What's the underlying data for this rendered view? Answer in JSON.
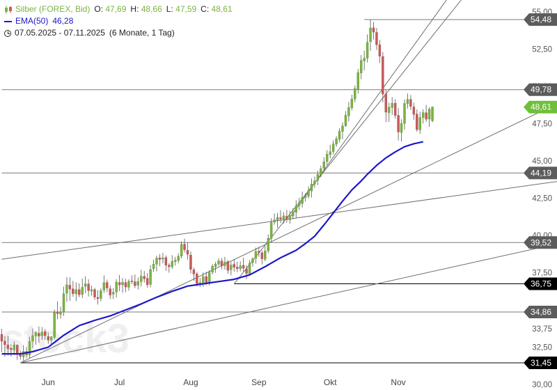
{
  "legend": {
    "instrument": "Silber (FOREX, Bid)",
    "open_label": "O:",
    "open": "47,69",
    "high_label": "H:",
    "high": "48,66",
    "low_label": "L:",
    "low": "47,59",
    "close_label": "C:",
    "close": "48,61",
    "ema_label": "EMA(50)",
    "ema_value": "46,28",
    "period": "07.05.2025 - 07.11.2025",
    "interval": "(6 Monate, 1 Tag)"
  },
  "colors": {
    "up": "#7bb342",
    "down": "#c75b5b",
    "ema": "#1c17c9",
    "line": "#707070",
    "text": "#333333",
    "current": "#6fbf3a",
    "watermark": "#eeeeee"
  },
  "watermark": "stock3",
  "chart_data": {
    "type": "candlestick",
    "ylim": [
      30,
      55
    ],
    "y_ticks": [
      30,
      32.5,
      33.75,
      35,
      37.5,
      40,
      42.5,
      45,
      47.5,
      50,
      52.5,
      55
    ],
    "y_tick_labels": [
      "30,00",
      "32,50",
      "33,75",
      "35,00",
      "37,50",
      "40,00",
      "42,50",
      "45,00",
      "47,50",
      "50,00",
      "52,50",
      "55,00"
    ],
    "x_labels": [
      "Jun",
      "Jul",
      "Aug",
      "Sep",
      "Okt",
      "Nov"
    ],
    "x_label_index": [
      15,
      38,
      61,
      83,
      106,
      128
    ],
    "price_levels": [
      {
        "value": 54.48,
        "label": "54,48",
        "style": "gray",
        "from_index": 117
      },
      {
        "value": 49.78,
        "label": "49,78",
        "style": "gray",
        "from_index": 0
      },
      {
        "value": 48.61,
        "label": "48,61",
        "style": "current",
        "from_index": 0
      },
      {
        "value": 44.19,
        "label": "44,19",
        "style": "gray",
        "from_index": 0
      },
      {
        "value": 39.52,
        "label": "39,52",
        "style": "gray",
        "from_index": 0
      },
      {
        "value": 36.75,
        "label": "36,75",
        "style": "black",
        "from_index": 75
      },
      {
        "value": 34.86,
        "label": "34,86",
        "style": "gray",
        "from_index": 0
      },
      {
        "value": 31.45,
        "label": "31,45",
        "style": "black",
        "from_index": 6
      }
    ],
    "trendlines": [
      {
        "from": [
          6,
          31.45
        ],
        "to": [
          146,
          37.9
        ]
      },
      {
        "from": [
          6,
          31.45
        ],
        "to": [
          146,
          45.5
        ]
      },
      {
        "from": [
          0,
          38.4
        ],
        "to": [
          146,
          42.65
        ]
      },
      {
        "from": [
          75,
          36.75
        ],
        "to": [
          146,
          55.2
        ]
      },
      {
        "from": [
          93,
          41.2
        ],
        "to": [
          146,
          56.5
        ]
      }
    ],
    "candles": [
      [
        33.36,
        33.73,
        32.16,
        32.9
      ],
      [
        32.91,
        33.23,
        31.85,
        32.66
      ],
      [
        32.66,
        33.25,
        31.95,
        32.41
      ],
      [
        32.43,
        32.73,
        31.88,
        32.34
      ],
      [
        32.32,
        32.89,
        32.09,
        32.66
      ],
      [
        32.64,
        32.68,
        31.65,
        32.09
      ],
      [
        32.1,
        32.26,
        31.66,
        31.88
      ],
      [
        31.85,
        32.64,
        31.6,
        32.22
      ],
      [
        32.21,
        32.51,
        31.76,
        31.98
      ],
      [
        31.98,
        33.2,
        31.77,
        32.88
      ],
      [
        32.9,
        33.76,
        32.44,
        33.28
      ],
      [
        33.25,
        33.56,
        32.66,
        33.48
      ],
      [
        33.44,
        33.89,
        32.79,
        33.24
      ],
      [
        33.27,
        33.85,
        32.99,
        33.52
      ],
      [
        33.55,
        33.73,
        32.99,
        33.27
      ],
      [
        33.22,
        33.47,
        32.72,
        32.97
      ],
      [
        32.97,
        33.24,
        32.64,
        33.2
      ],
      [
        33.16,
        35.03,
        33.02,
        34.82
      ],
      [
        34.85,
        35.58,
        34.37,
        34.75
      ],
      [
        34.71,
        35.22,
        34.42,
        34.85
      ],
      [
        34.85,
        36.56,
        34.59,
        36.08
      ],
      [
        36.12,
        37.21,
        35.55,
        36.69
      ],
      [
        36.66,
        37.19,
        35.62,
        36.4
      ],
      [
        36.41,
        36.95,
        35.88,
        36.09
      ],
      [
        36.08,
        36.85,
        35.59,
        36.36
      ],
      [
        36.36,
        36.78,
        35.85,
        36.02
      ],
      [
        36.04,
        37.11,
        35.79,
        36.52
      ],
      [
        36.58,
        37.26,
        36.12,
        36.75
      ],
      [
        36.74,
        37.05,
        35.9,
        36.29
      ],
      [
        36.26,
        36.62,
        35.96,
        36.36
      ],
      [
        36.37,
        36.48,
        35.67,
        35.86
      ],
      [
        35.84,
        36.33,
        35.36,
        35.76
      ],
      [
        35.77,
        36.45,
        35.57,
        36.29
      ],
      [
        36.33,
        37.32,
        36.14,
        36.83
      ],
      [
        36.84,
        37.03,
        36.2,
        36.47
      ],
      [
        36.42,
        36.64,
        35.73,
        36
      ],
      [
        36.06,
        36.47,
        35.73,
        36.18
      ],
      [
        36.2,
        37.06,
        35.82,
        36.87
      ],
      [
        36.84,
        37.35,
        36.27,
        36.68
      ],
      [
        36.68,
        37.13,
        36.15,
        36.86
      ],
      [
        36.83,
        37.09,
        36.19,
        36.54
      ],
      [
        36.52,
        37.05,
        36.29,
        36.92
      ],
      [
        36.94,
        37.32,
        36.73,
        36.9
      ],
      [
        36.89,
        37.38,
        36.46,
        36.63
      ],
      [
        36.66,
        37.18,
        36.37,
        36.9
      ],
      [
        36.89,
        37.69,
        36.57,
        37.26
      ],
      [
        37.25,
        37.61,
        36.83,
        37.09
      ],
      [
        37.12,
        37.46,
        36.49,
        36.69
      ],
      [
        36.71,
        38.01,
        36.52,
        37.71
      ],
      [
        37.77,
        38.37,
        37.55,
        38.07
      ],
      [
        38.07,
        38.64,
        37.58,
        38.47
      ],
      [
        38.5,
        38.75,
        37.93,
        38.39
      ],
      [
        38.41,
        38.83,
        38.12,
        38.49
      ],
      [
        38.51,
        38.66,
        37.62,
        38
      ],
      [
        38,
        38.14,
        37.5,
        37.9
      ],
      [
        37.89,
        38.67,
        37.75,
        38.26
      ],
      [
        38.24,
        38.56,
        37.97,
        38.34
      ],
      [
        38.31,
        38.8,
        38.12,
        38.6
      ],
      [
        38.61,
        39.6,
        38.45,
        39.4
      ],
      [
        39.41,
        39.78,
        38.85,
        39.04
      ],
      [
        39,
        39.49,
        38.37,
        38.73
      ],
      [
        38.68,
        38.92,
        37.45,
        37.72
      ],
      [
        37.69,
        37.84,
        36.95,
        37.41
      ],
      [
        37.42,
        37.56,
        36.58,
        36.77
      ],
      [
        36.79,
        37.15,
        36.53,
        36.83
      ],
      [
        36.84,
        37.52,
        36.56,
        37.24
      ],
      [
        37.24,
        37.56,
        36.67,
        36.86
      ],
      [
        36.82,
        37.67,
        36.64,
        37.5
      ],
      [
        37.53,
        38.08,
        37.39,
        37.93
      ],
      [
        37.9,
        38.22,
        37.49,
        38.07
      ],
      [
        38.07,
        38.46,
        37.96,
        38.29
      ],
      [
        38.28,
        38.48,
        37.73,
        37.97
      ],
      [
        37.97,
        38.56,
        37.71,
        38.2
      ],
      [
        38.25,
        38.32,
        37.43,
        37.66
      ],
      [
        37.69,
        38.21,
        37.32,
        38.01
      ],
      [
        38.06,
        38.41,
        37.56,
        37.86
      ],
      [
        37.87,
        38.23,
        37.54,
        37.77
      ],
      [
        37.76,
        38.26,
        37.57,
        37.96
      ],
      [
        37.99,
        38.51,
        37.57,
        37.8
      ],
      [
        37.76,
        38.01,
        37.06,
        37.45
      ],
      [
        37.41,
        38.34,
        37.3,
        38.12
      ],
      [
        38.17,
        38.53,
        37.9,
        38.43
      ],
      [
        38.46,
        39.18,
        38.1,
        38.93
      ],
      [
        38.93,
        39.24,
        38.56,
        38.85
      ],
      [
        38.83,
        38.98,
        38.05,
        38.43
      ],
      [
        38.4,
        39.29,
        38.26,
        38.95
      ],
      [
        38.96,
        40.07,
        38.8,
        39.81
      ],
      [
        39.81,
        41.15,
        39.55,
        40.86
      ],
      [
        40.89,
        41.48,
        40.71,
        41.04
      ],
      [
        41.03,
        41.51,
        40.5,
        41.2
      ],
      [
        41.19,
        41.68,
        40.83,
        41.1
      ],
      [
        41.1,
        41.57,
        40.79,
        41.31
      ],
      [
        41.28,
        41.71,
        40.86,
        41.08
      ],
      [
        41.05,
        41.66,
        40.79,
        41.32
      ],
      [
        41.3,
        41.84,
        41.09,
        41.54
      ],
      [
        41.55,
        42.36,
        41.19,
        41.98
      ],
      [
        42,
        42.52,
        41.71,
        42.17
      ],
      [
        42.14,
        42.94,
        41.86,
        42.56
      ],
      [
        42.54,
        42.82,
        42.27,
        42.64
      ],
      [
        42.64,
        43.28,
        42.47,
        43
      ],
      [
        42.98,
        43.82,
        42.54,
        43.44
      ],
      [
        43.44,
        43.95,
        43.19,
        43.66
      ],
      [
        43.69,
        44.34,
        43.37,
        44.09
      ],
      [
        44.05,
        44.68,
        43.9,
        44.48
      ],
      [
        44.5,
        45.25,
        44.32,
        44.94
      ],
      [
        44.96,
        45.72,
        44.72,
        45.45
      ],
      [
        45.42,
        46.08,
        45.17,
        45.62
      ],
      [
        45.63,
        46.37,
        45.43,
        46.13
      ],
      [
        46.12,
        46.66,
        45.94,
        46.49
      ],
      [
        46.45,
        47.19,
        46.23,
        46.99
      ],
      [
        46.98,
        47.58,
        46.46,
        47.35
      ],
      [
        47.36,
        48.34,
        47.28,
        48.06
      ],
      [
        48.02,
        48.96,
        47.64,
        48.58
      ],
      [
        48.56,
        49.44,
        48.38,
        49.15
      ],
      [
        49.15,
        50.05,
        48.92,
        49.85
      ],
      [
        49.83,
        51.18,
        49.52,
        50.92
      ],
      [
        50.9,
        52.1,
        50.48,
        51.74
      ],
      [
        51.71,
        52.4,
        51.07,
        51.89
      ],
      [
        51.89,
        53.48,
        51.6,
        52.95
      ],
      [
        53,
        54.48,
        52.38,
        53.92
      ],
      [
        53.93,
        54.33,
        53.15,
        53.64
      ],
      [
        53.62,
        53.92,
        52.45,
        52.79
      ],
      [
        52.79,
        53.12,
        51.58,
        52.03
      ],
      [
        52,
        52.3,
        48.92,
        49.48
      ],
      [
        49.48,
        49.78,
        47.6,
        48.27
      ],
      [
        48.23,
        48.91,
        47.61,
        48.6
      ],
      [
        48.58,
        49.28,
        48.07,
        48.86
      ],
      [
        48.87,
        49.14,
        47.84,
        48.05
      ],
      [
        48.05,
        48.55,
        46.37,
        46.94
      ],
      [
        46.91,
        47.79,
        46.3,
        47.51
      ],
      [
        47.51,
        49.12,
        47.11,
        48.85
      ],
      [
        48.84,
        49.52,
        48.51,
        49.13
      ],
      [
        49.12,
        49.42,
        48.41,
        48.66
      ],
      [
        48.62,
        48.9,
        47.74,
        48.12
      ],
      [
        48.14,
        48.45,
        46.95,
        47.1
      ],
      [
        47.08,
        48.3,
        46.81,
        47.91
      ],
      [
        47.9,
        48.47,
        47.5,
        48.24
      ],
      [
        48.23,
        48.76,
        47.61,
        47.8
      ],
      [
        47.8,
        48.6,
        47.28,
        48.47
      ],
      [
        47.69,
        48.66,
        47.59,
        48.61
      ]
    ],
    "ema50": [
      [
        0,
        32.05
      ],
      [
        6,
        32.05
      ],
      [
        10,
        32.2
      ],
      [
        15,
        32.5
      ],
      [
        20,
        33.3
      ],
      [
        25,
        33.95
      ],
      [
        30,
        34.3
      ],
      [
        35,
        34.6
      ],
      [
        40,
        35.0
      ],
      [
        45,
        35.4
      ],
      [
        50,
        35.85
      ],
      [
        55,
        36.25
      ],
      [
        60,
        36.6
      ],
      [
        65,
        36.75
      ],
      [
        70,
        36.9
      ],
      [
        75,
        37.05
      ],
      [
        80,
        37.35
      ],
      [
        85,
        37.9
      ],
      [
        90,
        38.5
      ],
      [
        95,
        39.0
      ],
      [
        98,
        39.45
      ],
      [
        101,
        39.95
      ],
      [
        104,
        40.7
      ],
      [
        107,
        41.5
      ],
      [
        110,
        42.3
      ],
      [
        113,
        43.05
      ],
      [
        116,
        43.65
      ],
      [
        118,
        44.1
      ],
      [
        121,
        44.7
      ],
      [
        124,
        45.2
      ],
      [
        127,
        45.6
      ],
      [
        130,
        45.95
      ],
      [
        133,
        46.15
      ],
      [
        136,
        46.28
      ]
    ]
  }
}
